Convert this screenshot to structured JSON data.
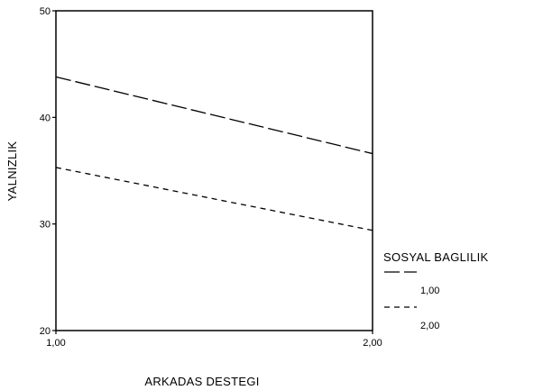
{
  "chart_data": {
    "type": "line",
    "xlabel": "ARKADAS DESTEGI",
    "ylabel": "YALNIZLIK",
    "x": [
      1.0,
      2.0
    ],
    "x_tick_labels": [
      "1,00",
      "2,00"
    ],
    "xlim": [
      1.0,
      2.0
    ],
    "y_ticks": [
      20,
      30,
      40,
      50
    ],
    "y_tick_labels": [
      "20",
      "30",
      "40",
      "50"
    ],
    "ylim": [
      20,
      50
    ],
    "grid": false,
    "legend": {
      "title": "SOSYAL BAGLILIK",
      "placement": "right"
    },
    "series": [
      {
        "name": "1,00",
        "values": [
          43.8,
          36.6
        ],
        "style": "long-dash",
        "color": "#000000"
      },
      {
        "name": "2,00",
        "values": [
          35.3,
          29.4
        ],
        "style": "short-dash",
        "color": "#000000"
      }
    ]
  }
}
